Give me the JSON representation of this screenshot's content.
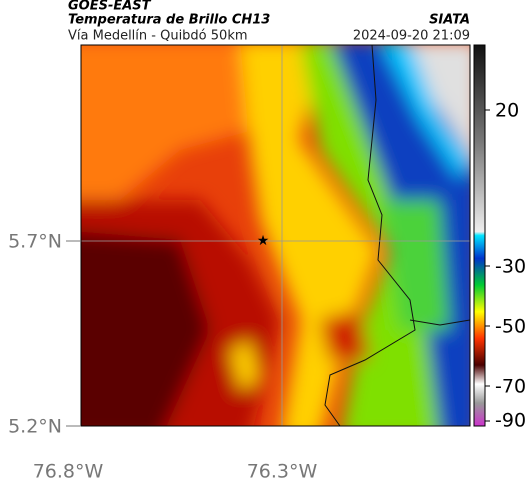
{
  "header": {
    "satellite": "GOES-EAST",
    "product": "Temperatura de Brillo CH13",
    "source": "SIATA",
    "subtitle": "Vía Medellín - Quibdó 50km",
    "timestamp": "2024-09-20 21:09"
  },
  "map": {
    "lat_labels": [
      "5.7°N",
      "5.2°N"
    ],
    "lon_labels": [
      "76.8°W",
      "76.3°W"
    ]
  },
  "colorbar": {
    "ticks": [
      20,
      -30,
      -50,
      -70,
      -90
    ]
  }
}
